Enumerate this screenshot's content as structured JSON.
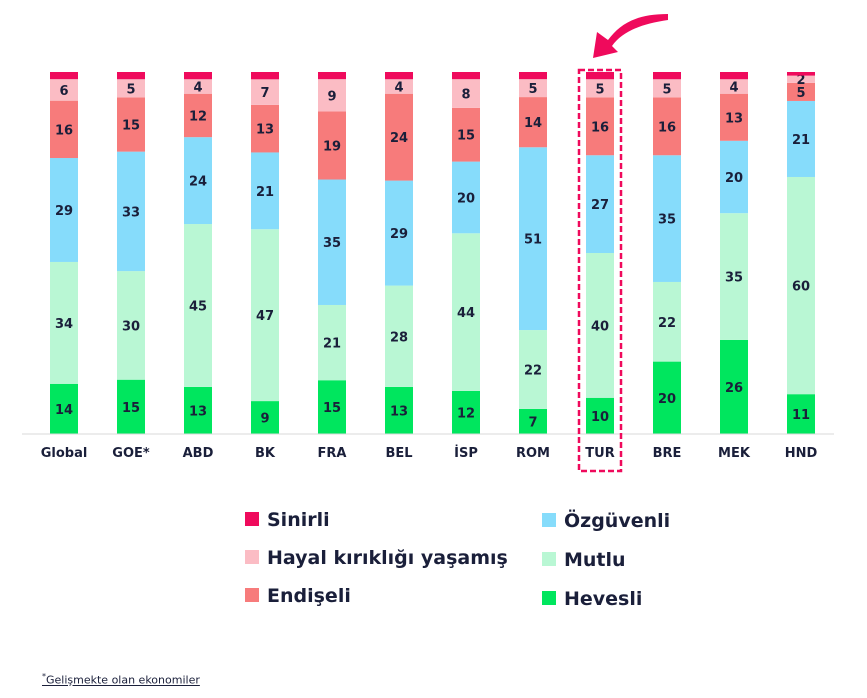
{
  "chart_data": {
    "type": "bar",
    "stacked": true,
    "orientation": "vertical",
    "categories": [
      "Global",
      "GOE*",
      "ABD",
      "BK",
      "FRA",
      "BEL",
      "İSP",
      "ROM",
      "TUR",
      "BRE",
      "MEK",
      "HND"
    ],
    "series": [
      {
        "name": "Hevesli",
        "color": "#00e65e",
        "values": [
          14,
          15,
          13,
          9,
          15,
          13,
          12,
          7,
          10,
          20,
          26,
          11
        ]
      },
      {
        "name": "Mutlu",
        "color": "#b9f7d4",
        "values": [
          34,
          30,
          45,
          47,
          21,
          28,
          44,
          22,
          40,
          22,
          35,
          60
        ]
      },
      {
        "name": "Özgüvenli",
        "color": "#86dcfb",
        "values": [
          29,
          33,
          24,
          21,
          35,
          29,
          20,
          51,
          27,
          35,
          20,
          21
        ]
      },
      {
        "name": "Endişeli",
        "color": "#f77b7b",
        "values": [
          16,
          15,
          12,
          13,
          19,
          24,
          15,
          14,
          16,
          16,
          13,
          5
        ]
      },
      {
        "name": "Hayal kırıklığı yaşamış",
        "color": "#fbbcc4",
        "values": [
          6,
          5,
          4,
          7,
          9,
          4,
          8,
          5,
          5,
          5,
          4,
          2
        ]
      },
      {
        "name": "Sinirli",
        "color": "#ef0a5c",
        "values": [
          2,
          2,
          2,
          2,
          2,
          2,
          2,
          2,
          2,
          2,
          2,
          1
        ]
      }
    ],
    "legend_order": [
      "Sinirli",
      "Hayal kırıklığı yaşamış",
      "Endişeli",
      "Özgüvenli",
      "Mutlu",
      "Hevesli"
    ],
    "legend_placement": "bottom",
    "highlighted_category": "TUR",
    "highlight_color": "#ef0a5c",
    "ylim": [
      0,
      100
    ],
    "grid": false
  },
  "footnote": {
    "marker": "*",
    "text": "Gelişmekte olan ekonomiler"
  }
}
